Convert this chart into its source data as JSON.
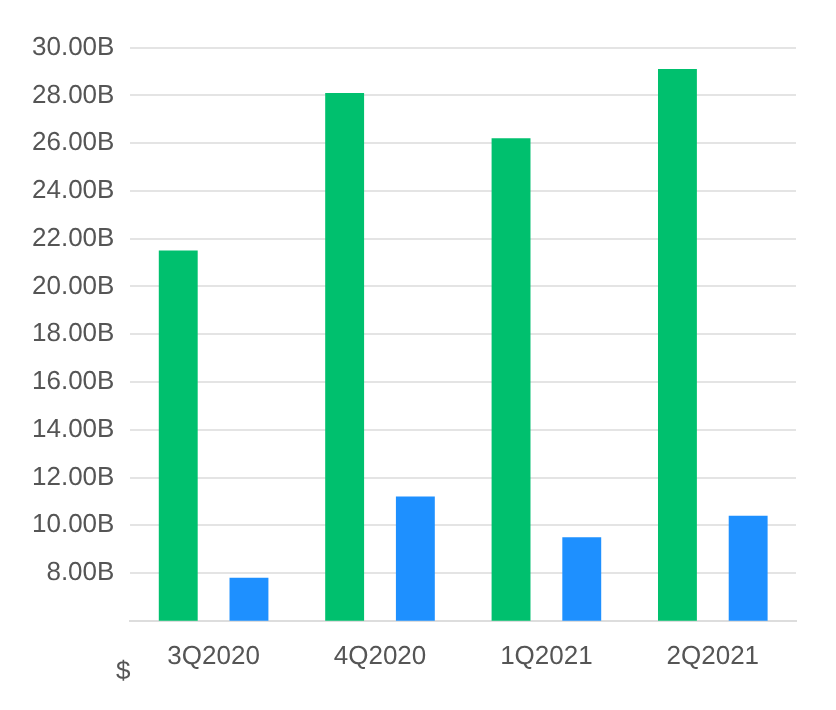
{
  "chart_data": {
    "type": "bar",
    "categories": [
      "3Q2020",
      "4Q2020",
      "1Q2021",
      "2Q2021"
    ],
    "series": [
      {
        "color": "#00c06e",
        "values": [
          21.5,
          28.1,
          26.2,
          29.1
        ]
      },
      {
        "color": "#1e90ff",
        "values": [
          7.8,
          11.2,
          9.5,
          10.4
        ]
      }
    ],
    "ylim": [
      6,
      30
    ],
    "yticks": [
      {
        "value": 8,
        "label": "8.00B"
      },
      {
        "value": 10,
        "label": "10.00B"
      },
      {
        "value": 12,
        "label": "12.00B"
      },
      {
        "value": 14,
        "label": "14.00B"
      },
      {
        "value": 16,
        "label": "16.00B"
      },
      {
        "value": 18,
        "label": "18.00B"
      },
      {
        "value": 20,
        "label": "20.00B"
      },
      {
        "value": 22,
        "label": "22.00B"
      },
      {
        "value": 24,
        "label": "24.00B"
      },
      {
        "value": 26,
        "label": "26.00B"
      },
      {
        "value": 28,
        "label": "28.00B"
      },
      {
        "value": 30,
        "label": "30.00B"
      }
    ],
    "grid": "y",
    "legend": false,
    "annotations": [
      "$"
    ]
  }
}
